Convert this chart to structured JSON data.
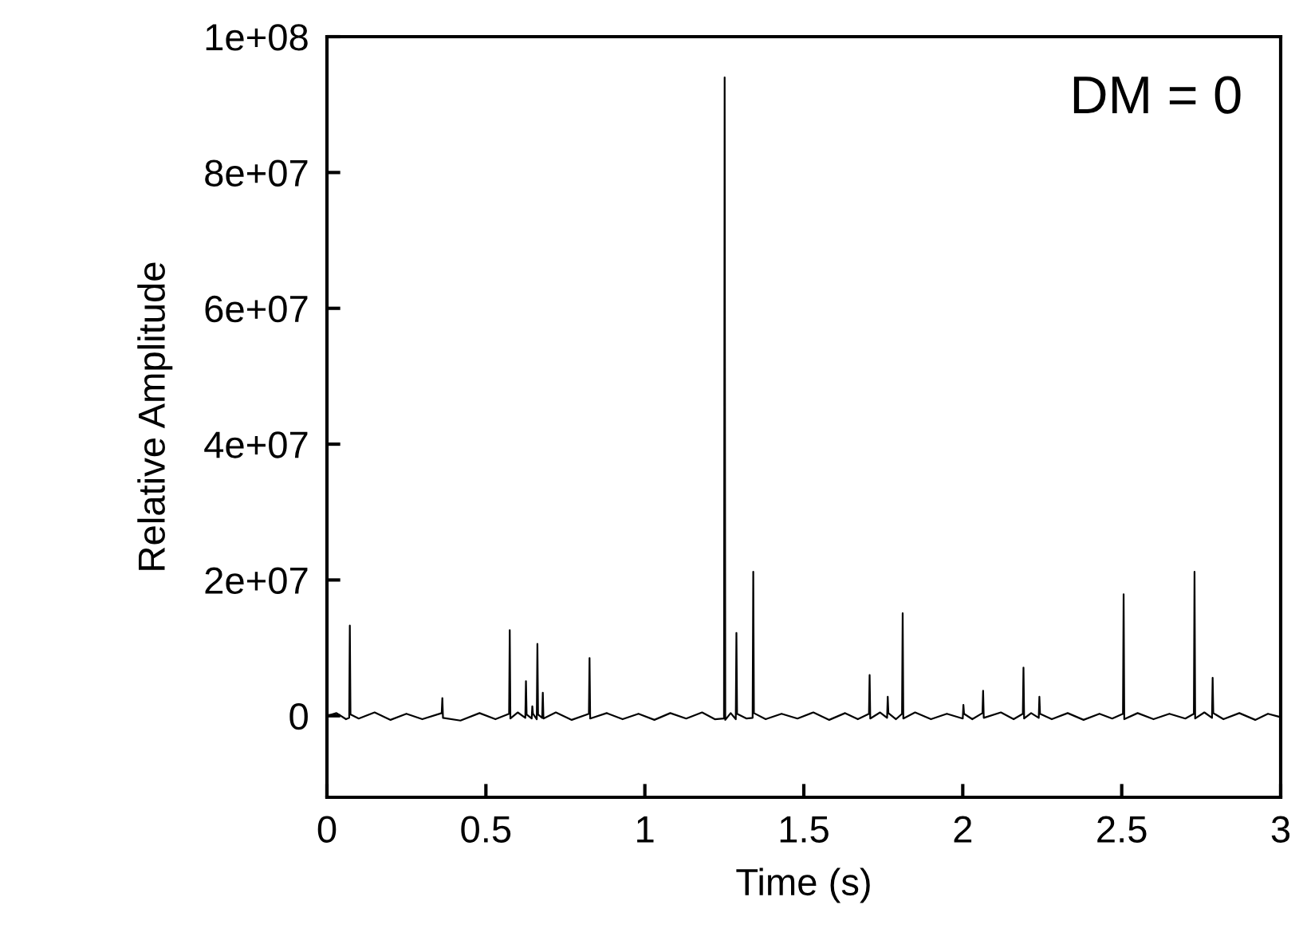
{
  "chart_data": {
    "type": "line",
    "xlabel": "Time (s)",
    "ylabel": "Relative Amplitude",
    "annotations": [
      "DM = 0"
    ],
    "xlim": [
      0,
      3
    ],
    "ylim": [
      -12000000,
      100000000
    ],
    "xticks": [
      0,
      0.5,
      1,
      1.5,
      2,
      2.5,
      3
    ],
    "yticks": [
      {
        "value": 0,
        "label": "0"
      },
      {
        "value": 20000000,
        "label": "2e+07"
      },
      {
        "value": 40000000,
        "label": "4e+07"
      },
      {
        "value": 60000000,
        "label": "6e+07"
      },
      {
        "value": 80000000,
        "label": "8e+07"
      },
      {
        "value": 100000000,
        "label": "1e+08"
      }
    ],
    "grid": false,
    "legend": false,
    "marker": "none",
    "line_style": "solid",
    "series": [
      {
        "color": "#000000",
        "x": [
          0,
          0.03,
          0.06,
          0.07,
          0.072,
          0.074,
          0.1,
          0.15,
          0.2,
          0.25,
          0.3,
          0.361,
          0.363,
          0.365,
          0.42,
          0.48,
          0.53,
          0.573,
          0.575,
          0.577,
          0.6,
          0.624,
          0.626,
          0.628,
          0.644,
          0.646,
          0.648,
          0.66,
          0.662,
          0.664,
          0.677,
          0.679,
          0.681,
          0.72,
          0.77,
          0.824,
          0.826,
          0.828,
          0.88,
          0.93,
          0.98,
          1.03,
          1.08,
          1.13,
          1.18,
          1.22,
          1.249,
          1.251,
          1.253,
          1.27,
          1.286,
          1.288,
          1.29,
          1.32,
          1.339,
          1.341,
          1.343,
          1.38,
          1.43,
          1.48,
          1.53,
          1.58,
          1.63,
          1.67,
          1.705,
          1.707,
          1.709,
          1.74,
          1.762,
          1.764,
          1.766,
          1.79,
          1.809,
          1.811,
          1.813,
          1.85,
          1.9,
          1.95,
          2.0,
          2.002,
          2.004,
          2.03,
          2.062,
          2.064,
          2.066,
          2.12,
          2.16,
          2.189,
          2.191,
          2.193,
          2.215,
          2.239,
          2.241,
          2.243,
          2.28,
          2.33,
          2.38,
          2.43,
          2.47,
          2.504,
          2.506,
          2.508,
          2.55,
          2.6,
          2.65,
          2.7,
          2.727,
          2.729,
          2.731,
          2.76,
          2.784,
          2.786,
          2.788,
          2.82,
          2.87,
          2.92,
          2.96,
          3.0
        ],
        "values": [
          0,
          400000,
          -500000,
          -300000,
          13300000,
          200000,
          -400000,
          500000,
          -600000,
          300000,
          -500000,
          400000,
          2600000,
          -300000,
          -700000,
          400000,
          -500000,
          300000,
          12600000,
          -400000,
          500000,
          -300000,
          5100000,
          200000,
          -400000,
          1400000,
          300000,
          -500000,
          10600000,
          200000,
          -300000,
          3400000,
          -400000,
          500000,
          -600000,
          300000,
          8500000,
          -400000,
          400000,
          -500000,
          300000,
          -600000,
          400000,
          -400000,
          500000,
          -500000,
          -400000,
          94000000,
          -600000,
          400000,
          -500000,
          12200000,
          300000,
          -400000,
          -300000,
          21200000,
          400000,
          -500000,
          300000,
          -400000,
          500000,
          -600000,
          400000,
          -500000,
          300000,
          6000000,
          -400000,
          500000,
          -300000,
          2800000,
          400000,
          -500000,
          300000,
          15100000,
          -400000,
          500000,
          -500000,
          300000,
          -400000,
          1600000,
          300000,
          -500000,
          400000,
          3700000,
          -300000,
          500000,
          -500000,
          300000,
          7100000,
          -400000,
          400000,
          -300000,
          2800000,
          300000,
          -500000,
          400000,
          -600000,
          300000,
          -400000,
          300000,
          17900000,
          -500000,
          400000,
          -500000,
          300000,
          -400000,
          300000,
          21200000,
          -400000,
          500000,
          -300000,
          5600000,
          400000,
          -500000,
          400000,
          -600000,
          300000,
          -200000
        ]
      }
    ]
  }
}
